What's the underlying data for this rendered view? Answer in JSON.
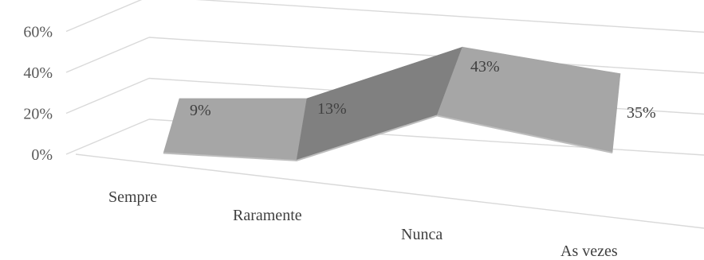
{
  "chart_data": {
    "type": "line",
    "style": "3d-ribbon",
    "categories": [
      "Sempre",
      "Raramente",
      "Nunca",
      "As vezes"
    ],
    "series": [
      {
        "values": [
          9,
          13,
          43,
          35
        ]
      }
    ],
    "data_labels": [
      "9%",
      "13%",
      "43%",
      "35%"
    ],
    "y_ticks": [
      "0%",
      "20%",
      "40%",
      "60%"
    ],
    "ylim": [
      0,
      60
    ],
    "grid": true,
    "legend": "none",
    "colors": {
      "ribbon_top": "#a6a6a6",
      "ribbon_dark": "#808080",
      "ribbon_underside": "#bdbdbd",
      "grid": "#d9d9d9"
    }
  }
}
